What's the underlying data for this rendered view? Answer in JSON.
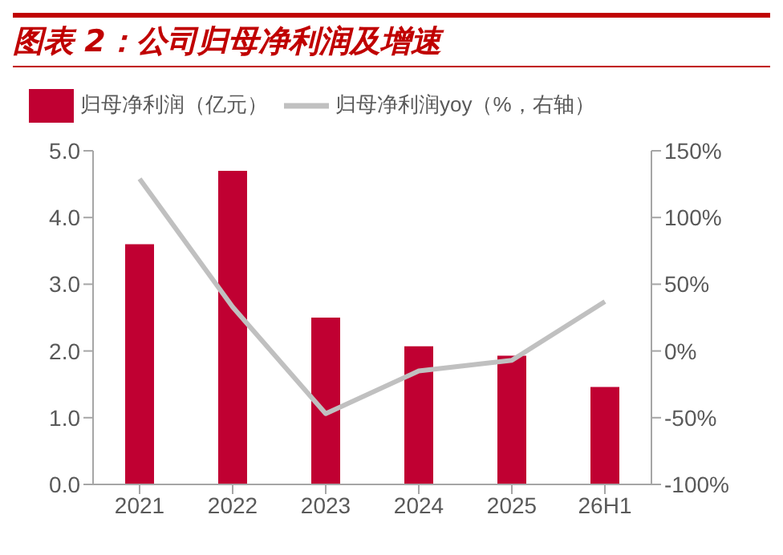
{
  "chart_data": {
    "type": "bar",
    "title": "图表 2：公司归母净利润及增速",
    "categories": [
      "2021",
      "2022",
      "2023",
      "2024",
      "2025",
      "26H1"
    ],
    "series": [
      {
        "name": "归母净利润（亿元）",
        "color": "#c00032",
        "values": [
          3.6,
          4.7,
          2.5,
          2.07,
          1.93,
          1.46
        ]
      },
      {
        "name": "归母净利润yoy（%，右轴）",
        "type": "line",
        "axis": "y2",
        "color": "#c0c0c0",
        "values": [
          129,
          33,
          -47,
          -15,
          -7,
          37
        ]
      }
    ],
    "ylim": [
      0,
      5
    ],
    "yticks": [
      {
        "value": 0,
        "label": "0.0"
      },
      {
        "value": 1,
        "label": "1.0"
      },
      {
        "value": 2,
        "label": "2.0"
      },
      {
        "value": 3,
        "label": "3.0"
      },
      {
        "value": 4,
        "label": "4.0"
      },
      {
        "value": 5,
        "label": "5.0"
      }
    ],
    "y2lim": [
      -100,
      150
    ],
    "y2ticks": [
      {
        "value": -100,
        "label": "-100%"
      },
      {
        "value": -50,
        "label": "-50%"
      },
      {
        "value": 0,
        "label": "0%"
      },
      {
        "value": 50,
        "label": "50%"
      },
      {
        "value": 100,
        "label": "100%"
      },
      {
        "value": 150,
        "label": "150%"
      }
    ],
    "legend": "top",
    "grid": false,
    "marker": "none"
  }
}
